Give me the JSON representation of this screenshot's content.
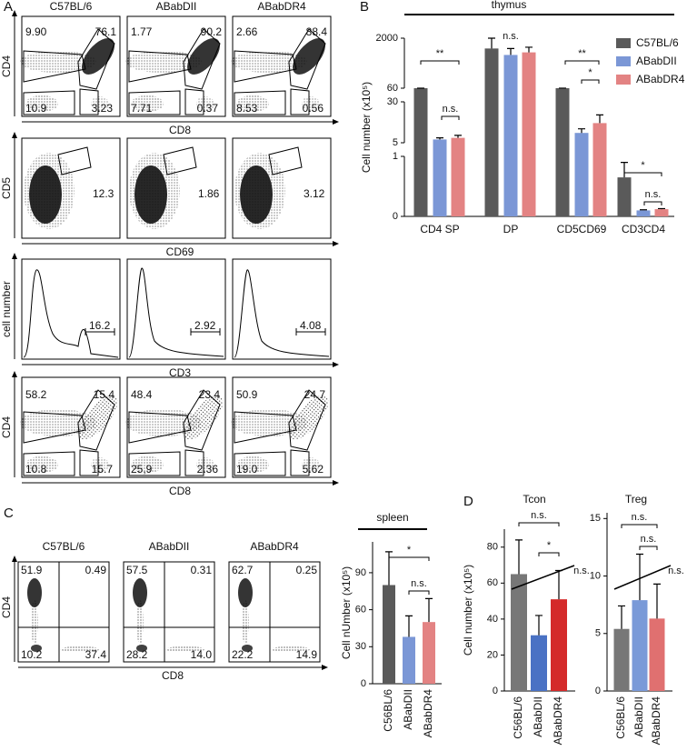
{
  "panel_labels": [
    "A",
    "B",
    "C",
    "D"
  ],
  "flow_a": {
    "strains": [
      "C57BL/6",
      "ABabDII",
      "ABabDR4"
    ],
    "rows": [
      {
        "y_label": "CD4",
        "x_label": "CD8",
        "numbers": [
          [
            "9.90",
            "76.1",
            "10.9",
            "3.23"
          ],
          [
            "1.77",
            "90.2",
            "7.71",
            "0.37"
          ],
          [
            "2.66",
            "88.4",
            "8.53",
            "0.56"
          ]
        ]
      },
      {
        "y_label": "CD5",
        "x_label": "CD69",
        "numbers": [
          [
            "12.3"
          ],
          [
            "1.86"
          ],
          [
            "3.12"
          ]
        ]
      },
      {
        "y_label": "cell number",
        "x_label": "CD3",
        "numbers": [
          [
            "16.2"
          ],
          [
            "2.92"
          ],
          [
            "4.08"
          ]
        ]
      },
      {
        "y_label": "CD4",
        "x_label": "CD8",
        "numbers": [
          [
            "58.2",
            "15.4",
            "10.8",
            "15.7"
          ],
          [
            "48.4",
            "23.4",
            "25,9",
            "2.36"
          ],
          [
            "50.9",
            "24.7",
            "19.0",
            "5.62"
          ]
        ]
      }
    ]
  },
  "flow_c": {
    "strains": [
      "C57BL/6",
      "ABabDII",
      "ABabDR4"
    ],
    "y_label": "CD4",
    "x_label": "CD8",
    "numbers": [
      [
        "51.9",
        "0.49",
        "10.2",
        "37.4"
      ],
      [
        "57.5",
        "0.31",
        "28.2",
        "14.0"
      ],
      [
        "62.7",
        "0.25",
        "22.2",
        "14.9"
      ]
    ]
  },
  "chart_data": [
    {
      "type": "broken-bar",
      "title": "thymus",
      "ylabel": "Cell number (x10⁵)",
      "categories": [
        "CD4 SP",
        "DP",
        "CD5CD69",
        "CD3CD4"
      ],
      "series": [
        {
          "name": "C57BL/6",
          "color": "#5a5a5a",
          "values": [
            60,
            1600,
            60,
            0.65
          ],
          "errors": [
            1,
            400,
            1.5,
            0.25
          ]
        },
        {
          "name": "ABabDII",
          "color": "#7b97d6",
          "values": [
            7,
            1350,
            11,
            0.1
          ],
          "errors": [
            1,
            250,
            2.5,
            0.01
          ]
        },
        {
          "name": "ABabDR4",
          "color": "#e38383",
          "values": [
            8,
            1450,
            17,
            0.12
          ],
          "errors": [
            1.5,
            200,
            5,
            0.01
          ]
        }
      ],
      "ylim_segments": [
        [
          0,
          1
        ],
        [
          5,
          30
        ],
        [
          60,
          2000
        ]
      ],
      "yticks": [
        0,
        1,
        5,
        30,
        60,
        2000
      ],
      "legend": "upper right",
      "annotations": [
        "**",
        "n.s.",
        "n.s.",
        "**",
        "*",
        "*",
        "n.s."
      ]
    },
    {
      "type": "bar",
      "title": "spleen",
      "ylabel": "Cell nUmber (x10⁵)",
      "categories": [
        "C56BL/6",
        "ABabDII",
        "ABabDR4"
      ],
      "values": [
        80,
        38,
        50
      ],
      "errors": [
        27,
        17,
        19
      ],
      "colors": [
        "#5a5a5a",
        "#7b97d6",
        "#e38383"
      ],
      "ylim": [
        0,
        115
      ],
      "yticks": [
        0,
        30,
        60,
        90
      ],
      "annotations": [
        "*",
        "n.s."
      ]
    },
    {
      "type": "bar",
      "title": "Tcon",
      "ylabel": "Cell number (x10⁵)",
      "categories": [
        "C56BL/6",
        "ABabDII",
        "ABabDR4"
      ],
      "values": [
        65,
        31,
        51
      ],
      "errors": [
        19,
        11,
        16
      ],
      "colors": [
        "#777777",
        "#4a72c4",
        "#d42a2a"
      ],
      "ylim": [
        0,
        90
      ],
      "yticks": [
        0,
        20,
        40,
        60,
        80
      ],
      "annotations": [
        "n.s.",
        "*",
        "n.s."
      ]
    },
    {
      "type": "bar",
      "title": "Treg",
      "categories": [
        "C56BL/6",
        "ABabDII",
        "ABabDR4"
      ],
      "values": [
        5.4,
        7.9,
        6.3
      ],
      "errors": [
        2,
        4,
        3
      ],
      "colors": [
        "#777777",
        "#7a9ad8",
        "#e07070"
      ],
      "ylim": [
        0,
        15.5
      ],
      "yticks": [
        0,
        5,
        10,
        15
      ],
      "annotations": [
        "n.s.",
        "n.s.",
        "n.s."
      ]
    }
  ]
}
